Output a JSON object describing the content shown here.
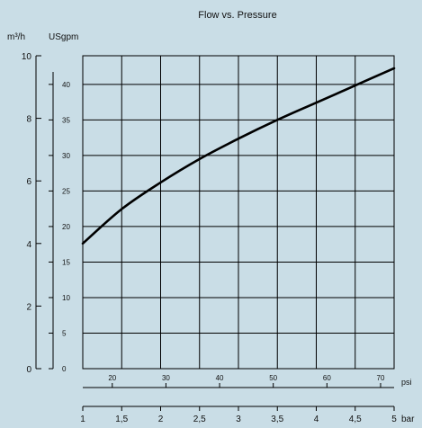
{
  "chart_data": {
    "type": "line",
    "title": "Flow vs. Pressure",
    "y_left": {
      "unit": "m³/h",
      "range": [
        0,
        10
      ],
      "ticks": [
        0,
        2,
        4,
        6,
        8,
        10
      ],
      "tick_labels": [
        "0",
        "2",
        "4",
        "6",
        "8",
        "10"
      ]
    },
    "y_inner": {
      "unit": "USgpm",
      "range_equiv_m3h": [
        0,
        10
      ],
      "ticks": [
        0,
        5,
        10,
        15,
        20,
        25,
        30,
        35,
        40
      ],
      "tick_labels": [
        "0",
        "5",
        "10",
        "15",
        "20",
        "25",
        "30",
        "35",
        "40"
      ],
      "m3h_per_usgpm": 0.22712
    },
    "x_top": {
      "unit": "psi",
      "ticks": [
        20,
        30,
        40,
        50,
        60,
        70
      ],
      "tick_labels": [
        "20",
        "30",
        "40",
        "50",
        "60",
        "70"
      ],
      "bar_per_psi": 0.0689476
    },
    "x_bottom": {
      "unit": "bar",
      "range": [
        1,
        5
      ],
      "ticks": [
        1,
        1.5,
        2,
        2.5,
        3,
        3.5,
        4,
        4.5,
        5
      ],
      "tick_labels": [
        "1",
        "1,5",
        "2",
        "2,5",
        "3",
        "3,5",
        "4",
        "4,5",
        "5"
      ]
    },
    "grid": true,
    "series": [
      {
        "x": [
          1.0,
          1.5,
          2.0,
          2.5,
          3.0,
          3.5,
          4.0,
          4.5,
          5.0
        ],
        "values": [
          4.0,
          5.1,
          5.95,
          6.7,
          7.35,
          7.95,
          8.5,
          9.05,
          9.6
        ]
      }
    ]
  }
}
